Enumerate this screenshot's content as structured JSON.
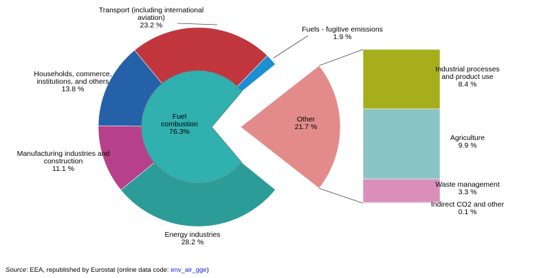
{
  "chart_data": {
    "type": "pie",
    "center": {
      "label": "Fuel combustion",
      "value": 76.3,
      "label_line1": "Fuel",
      "label_line2": "combustion",
      "value_text": "76.3%"
    },
    "outer_slices": [
      {
        "name": "Transport (including international aviation)",
        "value": 23.2,
        "color": "#c0363c",
        "lines": [
          "Transport  (including international",
          "aviation)"
        ],
        "value_text": "23.2 %"
      },
      {
        "name": "Fuels - fugitive emissions",
        "value": 1.9,
        "color": "#1c8fd2",
        "lines": [
          "Fuels - fugitive  emissions"
        ],
        "value_text": "1.9 %"
      },
      {
        "name": "Energy industries",
        "value": 28.2,
        "color": "#2b9c98",
        "lines": [
          "Energy industries"
        ],
        "value_text": "28.2 %"
      },
      {
        "name": "Manufacturing industries and construction",
        "value": 11.1,
        "color": "#b7408a",
        "lines": [
          "Manufacturing  industries and",
          "construction"
        ],
        "value_text": "11.1 %"
      },
      {
        "name": "Households, commerce, institutions, and others",
        "value": 13.8,
        "color": "#2561a8",
        "lines": [
          "Households,  commerce,",
          "institutions, and others"
        ],
        "value_text": "13.8 %"
      }
    ],
    "other": {
      "name": "Other",
      "value": 21.7,
      "value_text": "21.7 %",
      "color": "#e38b8b"
    },
    "other_breakdown": [
      {
        "name": "Industrial processes and product use",
        "value": 8.4,
        "color": "#a6ae1c",
        "lines": [
          "Industrial processes",
          "and product use"
        ],
        "value_text": "8.4 %"
      },
      {
        "name": "Agriculture",
        "value": 9.9,
        "color": "#8ac5c5",
        "lines": [
          "Agriculture"
        ],
        "value_text": "9.9 %"
      },
      {
        "name": "Waste management",
        "value": 3.3,
        "color": "#d98fb8",
        "lines": [
          "Waste management"
        ],
        "value_text": "3.3 %"
      },
      {
        "name": "Indirect CO2 and other",
        "value": 0.1,
        "color": "#d98fb8",
        "lines": [
          "Indirect CO2 and other"
        ],
        "value_text": "0.1 %"
      }
    ],
    "inner_circle_color": "#31b0b0"
  },
  "source": {
    "prefix": "Source",
    "text": ": EEA, republished by Eurostat (online data code: ",
    "code": "env_air_gge",
    "suffix": ")"
  }
}
